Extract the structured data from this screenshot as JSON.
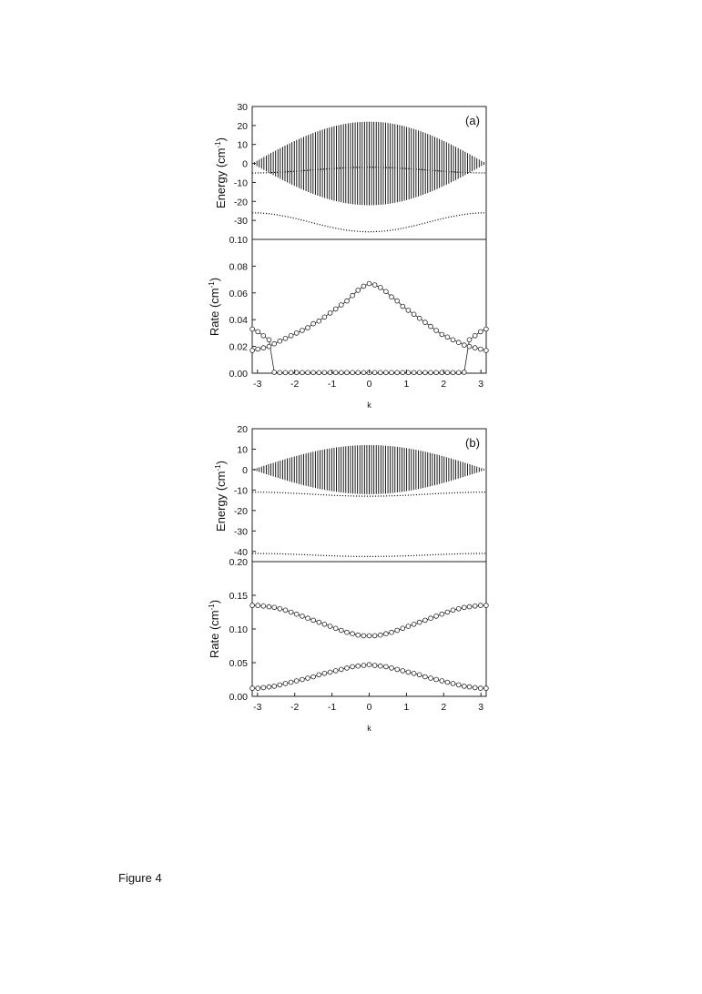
{
  "caption": "Figure 4",
  "chart_data": [
    {
      "panel": "(a)",
      "type": "line",
      "description_ignored": "",
      "ylabel": "Energy (cm",
      "ylabel_sup": "-1",
      "ylabel_close": ")",
      "ylim": [
        -40,
        30
      ],
      "yticks": [
        30,
        20,
        10,
        0,
        -10,
        -20,
        -30
      ],
      "band": {
        "amplitude": 22,
        "n_lines": 101
      },
      "series": [
        {
          "values_at_k": {
            "-3.14": -5,
            "0": -2,
            "3.14": -5
          }
        },
        {
          "values_at_k": {
            "-3.14": -26,
            "0": -36,
            "3.14": -26
          }
        }
      ]
    },
    {
      "panel": "(a)",
      "type": "scatter",
      "ylabel": "Rate (cm",
      "ylabel_sup": "-1",
      "ylabel_close": ")",
      "xlabel": "k",
      "xlim": [
        -3.1416,
        3.1416
      ],
      "ylim": [
        0,
        0.1
      ],
      "yticks": [
        "0.10",
        "0.08",
        "0.06",
        "0.04",
        "0.02",
        "0.00"
      ],
      "xticks": [
        "-3",
        "-2",
        "-1",
        "0",
        "1",
        "2",
        "3"
      ],
      "x": [
        -3.14,
        -2.99,
        -2.84,
        -2.69,
        -2.55,
        -2.4,
        -2.25,
        -2.1,
        -1.95,
        -1.8,
        -1.65,
        -1.5,
        -1.35,
        -1.2,
        -1.05,
        -0.9,
        -0.75,
        -0.6,
        -0.45,
        -0.3,
        -0.15,
        0.0,
        0.15,
        0.3,
        0.45,
        0.6,
        0.75,
        0.9,
        1.05,
        1.2,
        1.35,
        1.5,
        1.65,
        1.8,
        1.95,
        2.1,
        2.25,
        2.4,
        2.55,
        2.69,
        2.84,
        2.99,
        3.14
      ],
      "series": [
        {
          "values": [
            0.033,
            0.031,
            0.028,
            0.025,
            0.0007,
            0.0005,
            0.0005,
            0.0005,
            0.0005,
            0.0005,
            0.0005,
            0.0005,
            0.0005,
            0.0005,
            0.0005,
            0.0005,
            0.0005,
            0.0005,
            0.0005,
            0.0005,
            0.0005,
            0.0005,
            0.0005,
            0.0005,
            0.0005,
            0.0005,
            0.0005,
            0.0005,
            0.0005,
            0.0005,
            0.0005,
            0.0005,
            0.0005,
            0.0005,
            0.0005,
            0.0005,
            0.0005,
            0.0005,
            0.0007,
            0.025,
            0.028,
            0.031,
            0.033
          ]
        },
        {
          "values": [
            0.017,
            0.018,
            0.019,
            0.02,
            0.022,
            0.024,
            0.026,
            0.028,
            0.03,
            0.032,
            0.034,
            0.037,
            0.039,
            0.042,
            0.045,
            0.048,
            0.051,
            0.054,
            0.058,
            0.062,
            0.065,
            0.067,
            0.066,
            0.064,
            0.061,
            0.057,
            0.054,
            0.05,
            0.047,
            0.044,
            0.041,
            0.038,
            0.035,
            0.032,
            0.029,
            0.027,
            0.025,
            0.023,
            0.021,
            0.02,
            0.019,
            0.018,
            0.017
          ]
        }
      ]
    },
    {
      "panel": "(b)",
      "type": "line",
      "ylabel": "Energy (cm",
      "ylabel_sup": "-1",
      "ylabel_close": ")",
      "ylim": [
        -45,
        20
      ],
      "yticks": [
        20,
        10,
        0,
        -10,
        -20,
        -30,
        -40
      ],
      "band": {
        "amplitude": 12,
        "n_lines": 101
      },
      "series": [
        {
          "values_at_k": {
            "-3.14": -11,
            "0": -13,
            "3.14": -11
          }
        },
        {
          "values_at_k": {
            "-3.14": -41,
            "0": -42.5,
            "3.14": -41
          }
        }
      ]
    },
    {
      "panel": "(b)",
      "type": "scatter",
      "ylabel": "Rate (cm",
      "ylabel_sup": "-1",
      "ylabel_close": ")",
      "xlabel": "k",
      "xlim": [
        -3.1416,
        3.1416
      ],
      "ylim": [
        0,
        0.2
      ],
      "yticks": [
        "0.20",
        "0.15",
        "0.10",
        "0.05",
        "0.00"
      ],
      "xticks": [
        "-3",
        "-2",
        "-1",
        "0",
        "1",
        "2",
        "3"
      ],
      "x": [
        -3.14,
        -2.99,
        -2.84,
        -2.69,
        -2.55,
        -2.4,
        -2.25,
        -2.1,
        -1.95,
        -1.8,
        -1.65,
        -1.5,
        -1.35,
        -1.2,
        -1.05,
        -0.9,
        -0.75,
        -0.6,
        -0.45,
        -0.3,
        -0.15,
        0.0,
        0.15,
        0.3,
        0.45,
        0.6,
        0.75,
        0.9,
        1.05,
        1.2,
        1.35,
        1.5,
        1.65,
        1.8,
        1.95,
        2.1,
        2.25,
        2.4,
        2.55,
        2.69,
        2.84,
        2.99,
        3.14
      ],
      "series": [
        {
          "values": [
            0.135,
            0.135,
            0.134,
            0.133,
            0.132,
            0.13,
            0.128,
            0.125,
            0.122,
            0.119,
            0.116,
            0.113,
            0.11,
            0.107,
            0.104,
            0.101,
            0.098,
            0.095,
            0.093,
            0.091,
            0.09,
            0.09,
            0.09,
            0.091,
            0.093,
            0.095,
            0.098,
            0.101,
            0.104,
            0.107,
            0.11,
            0.113,
            0.116,
            0.119,
            0.122,
            0.125,
            0.128,
            0.13,
            0.132,
            0.133,
            0.134,
            0.135,
            0.135
          ]
        },
        {
          "values": [
            0.012,
            0.012,
            0.013,
            0.014,
            0.015,
            0.017,
            0.019,
            0.021,
            0.023,
            0.025,
            0.027,
            0.029,
            0.032,
            0.034,
            0.036,
            0.038,
            0.04,
            0.042,
            0.044,
            0.045,
            0.046,
            0.047,
            0.046,
            0.045,
            0.044,
            0.042,
            0.04,
            0.038,
            0.036,
            0.034,
            0.032,
            0.029,
            0.027,
            0.025,
            0.023,
            0.021,
            0.019,
            0.017,
            0.015,
            0.014,
            0.013,
            0.012,
            0.012
          ]
        }
      ]
    }
  ]
}
